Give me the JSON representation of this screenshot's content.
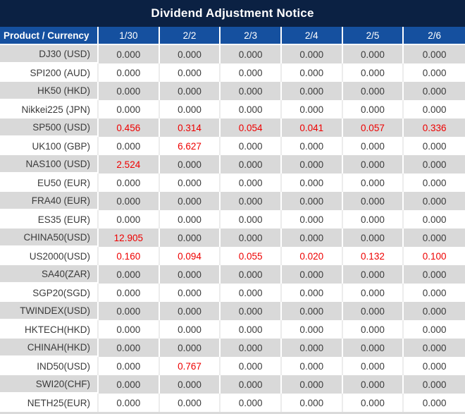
{
  "title": "Dividend Adjustment Notice",
  "colors": {
    "title_bg": "#0B2143",
    "header_bg": "#15509F",
    "header_text": "#FFFFFF",
    "row_alt_bg": "#D9D9D9",
    "row_bg": "#FFFFFF",
    "text": "#3B3B3B",
    "negative_red": "#EE0000",
    "divider_light": "#ECECEC"
  },
  "chart_data": {
    "type": "table",
    "title": "Dividend Adjustment Notice",
    "columns": [
      "Product / Currency",
      "1/30",
      "2/2",
      "2/3",
      "2/4",
      "2/5",
      "2/6"
    ],
    "rows": [
      {
        "product": "DJ30 (USD)",
        "values": [
          "0.000",
          "0.000",
          "0.000",
          "0.000",
          "0.000",
          "0.000"
        ],
        "red_cols": []
      },
      {
        "product": "SPI200 (AUD)",
        "values": [
          "0.000",
          "0.000",
          "0.000",
          "0.000",
          "0.000",
          "0.000"
        ],
        "red_cols": []
      },
      {
        "product": "HK50 (HKD)",
        "values": [
          "0.000",
          "0.000",
          "0.000",
          "0.000",
          "0.000",
          "0.000"
        ],
        "red_cols": []
      },
      {
        "product": "Nikkei225 (JPN)",
        "values": [
          "0.000",
          "0.000",
          "0.000",
          "0.000",
          "0.000",
          "0.000"
        ],
        "red_cols": []
      },
      {
        "product": "SP500 (USD)",
        "values": [
          "0.456",
          "0.314",
          "0.054",
          "0.041",
          "0.057",
          "0.336"
        ],
        "red_cols": [
          0,
          1,
          2,
          3,
          4,
          5
        ]
      },
      {
        "product": "UK100 (GBP)",
        "values": [
          "0.000",
          "6.627",
          "0.000",
          "0.000",
          "0.000",
          "0.000"
        ],
        "red_cols": [
          1
        ]
      },
      {
        "product": "NAS100 (USD)",
        "values": [
          "2.524",
          "0.000",
          "0.000",
          "0.000",
          "0.000",
          "0.000"
        ],
        "red_cols": [
          0
        ]
      },
      {
        "product": "EU50 (EUR)",
        "values": [
          "0.000",
          "0.000",
          "0.000",
          "0.000",
          "0.000",
          "0.000"
        ],
        "red_cols": []
      },
      {
        "product": "FRA40 (EUR)",
        "values": [
          "0.000",
          "0.000",
          "0.000",
          "0.000",
          "0.000",
          "0.000"
        ],
        "red_cols": []
      },
      {
        "product": "ES35 (EUR)",
        "values": [
          "0.000",
          "0.000",
          "0.000",
          "0.000",
          "0.000",
          "0.000"
        ],
        "red_cols": []
      },
      {
        "product": "CHINA50(USD)",
        "values": [
          "12.905",
          "0.000",
          "0.000",
          "0.000",
          "0.000",
          "0.000"
        ],
        "red_cols": [
          0
        ]
      },
      {
        "product": "US2000(USD)",
        "values": [
          "0.160",
          "0.094",
          "0.055",
          "0.020",
          "0.132",
          "0.100"
        ],
        "red_cols": [
          0,
          1,
          2,
          3,
          4,
          5
        ]
      },
      {
        "product": "SA40(ZAR)",
        "values": [
          "0.000",
          "0.000",
          "0.000",
          "0.000",
          "0.000",
          "0.000"
        ],
        "red_cols": []
      },
      {
        "product": "SGP20(SGD)",
        "values": [
          "0.000",
          "0.000",
          "0.000",
          "0.000",
          "0.000",
          "0.000"
        ],
        "red_cols": []
      },
      {
        "product": "TWINDEX(USD)",
        "values": [
          "0.000",
          "0.000",
          "0.000",
          "0.000",
          "0.000",
          "0.000"
        ],
        "red_cols": []
      },
      {
        "product": "HKTECH(HKD)",
        "values": [
          "0.000",
          "0.000",
          "0.000",
          "0.000",
          "0.000",
          "0.000"
        ],
        "red_cols": []
      },
      {
        "product": "CHINAH(HKD)",
        "values": [
          "0.000",
          "0.000",
          "0.000",
          "0.000",
          "0.000",
          "0.000"
        ],
        "red_cols": []
      },
      {
        "product": "IND50(USD)",
        "values": [
          "0.000",
          "0.767",
          "0.000",
          "0.000",
          "0.000",
          "0.000"
        ],
        "red_cols": [
          1
        ]
      },
      {
        "product": "SWI20(CHF)",
        "values": [
          "0.000",
          "0.000",
          "0.000",
          "0.000",
          "0.000",
          "0.000"
        ],
        "red_cols": []
      },
      {
        "product": "NETH25(EUR)",
        "values": [
          "0.000",
          "0.000",
          "0.000",
          "0.000",
          "0.000",
          "0.000"
        ],
        "red_cols": []
      }
    ]
  },
  "table": {
    "corner_header": "Product / Currency",
    "date_headers": [
      "1/30",
      "2/2",
      "2/3",
      "2/4",
      "2/5",
      "2/6"
    ]
  }
}
